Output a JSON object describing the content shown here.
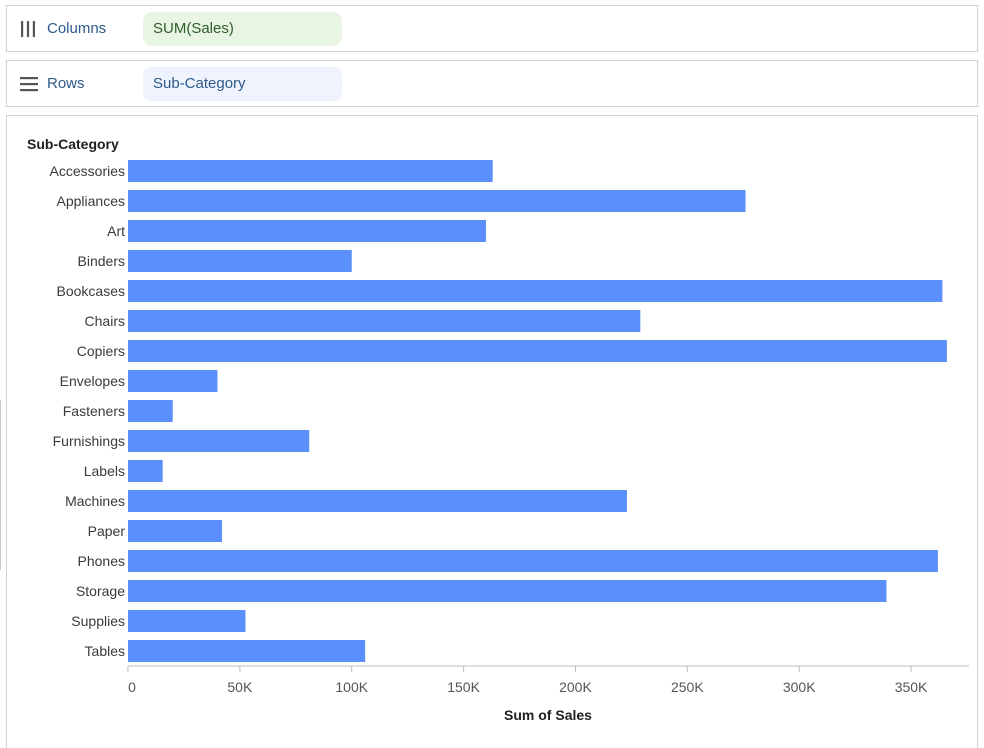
{
  "shelves": {
    "columns": {
      "label": "Columns",
      "pill": "SUM(Sales)",
      "icon": "columns-icon"
    },
    "rows": {
      "label": "Rows",
      "pill": "Sub-Category",
      "icon": "rows-icon"
    }
  },
  "colors": {
    "bar": "#5b8ff9",
    "axis": "#bdbdbd"
  },
  "chart_data": {
    "type": "bar",
    "orientation": "horizontal",
    "row_header": "Sub-Category",
    "xlabel": "Sum of Sales",
    "ylabel": "",
    "xlim": [
      0,
      375000
    ],
    "ticks": [
      0,
      50000,
      100000,
      150000,
      200000,
      250000,
      300000,
      350000
    ],
    "tick_labels": [
      "0",
      "50K",
      "100K",
      "150K",
      "200K",
      "250K",
      "300K",
      "350K"
    ],
    "grid": false,
    "categories": [
      "Accessories",
      "Appliances",
      "Art",
      "Binders",
      "Bookcases",
      "Chairs",
      "Copiers",
      "Envelopes",
      "Fasteners",
      "Furnishings",
      "Labels",
      "Machines",
      "Paper",
      "Phones",
      "Storage",
      "Supplies",
      "Tables"
    ],
    "values": [
      163000,
      276000,
      160000,
      100000,
      364000,
      229000,
      366000,
      40000,
      20000,
      81000,
      15500,
      223000,
      42000,
      362000,
      339000,
      52500,
      106000
    ]
  }
}
